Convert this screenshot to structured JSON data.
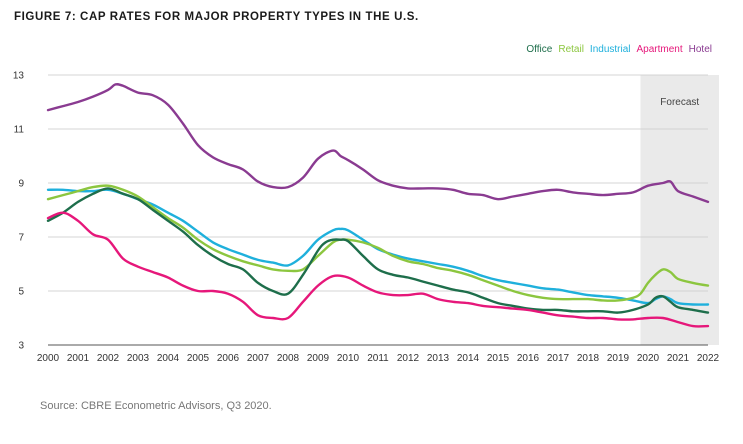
{
  "figure_title": "FIGURE 7: CAP RATES FOR MAJOR PROPERTY TYPES IN THE U.S.",
  "source": "Source: CBRE Econometric Advisors, Q3 2020.",
  "forecast_label": "Forecast",
  "chart_data": {
    "type": "line",
    "title": "FIGURE 7: CAP RATES FOR MAJOR PROPERTY TYPES IN THE U.S.",
    "xlabel": "",
    "ylabel": "",
    "xlim": [
      2000,
      2022
    ],
    "ylim": [
      3,
      13
    ],
    "yticks": [
      3,
      5,
      7,
      9,
      11,
      13
    ],
    "xticks": [
      2000,
      2001,
      2002,
      2003,
      2004,
      2005,
      2006,
      2007,
      2008,
      2009,
      2010,
      2011,
      2012,
      2013,
      2014,
      2015,
      2016,
      2017,
      2018,
      2019,
      2020,
      2021,
      2022
    ],
    "grid": "horizontal",
    "legend_position": "top-right",
    "forecast_range": [
      2019.75,
      2022.4
    ],
    "series": [
      {
        "name": "Office",
        "color": "#1e6e4b",
        "x": [
          2000,
          2000.5,
          2001,
          2001.5,
          2002,
          2002.5,
          2003,
          2003.5,
          2004,
          2004.5,
          2005,
          2005.5,
          2006,
          2006.5,
          2007,
          2007.5,
          2008,
          2008.5,
          2009,
          2009.25,
          2009.5,
          2009.75,
          2010,
          2010.5,
          2011,
          2011.5,
          2012,
          2012.5,
          2013,
          2013.5,
          2014,
          2014.5,
          2015,
          2015.5,
          2016,
          2016.5,
          2017,
          2017.5,
          2018,
          2018.5,
          2019,
          2019.5,
          2020,
          2020.25,
          2020.5,
          2020.75,
          2021,
          2021.5,
          2022
        ],
        "y": [
          7.6,
          7.9,
          8.3,
          8.6,
          8.8,
          8.6,
          8.4,
          8.0,
          7.6,
          7.2,
          6.7,
          6.3,
          6.0,
          5.8,
          5.3,
          5.0,
          4.9,
          5.6,
          6.5,
          6.8,
          6.9,
          6.9,
          6.85,
          6.3,
          5.8,
          5.6,
          5.5,
          5.35,
          5.2,
          5.05,
          4.95,
          4.75,
          4.55,
          4.45,
          4.35,
          4.3,
          4.3,
          4.25,
          4.25,
          4.25,
          4.2,
          4.3,
          4.5,
          4.75,
          4.8,
          4.6,
          4.4,
          4.3,
          4.2
        ]
      },
      {
        "name": "Retail",
        "color": "#8cc63f",
        "x": [
          2000,
          2000.5,
          2001,
          2001.5,
          2002,
          2002.5,
          2003,
          2003.5,
          2004,
          2004.5,
          2005,
          2005.5,
          2006,
          2006.5,
          2007,
          2007.5,
          2008,
          2008.5,
          2009,
          2009.5,
          2009.75,
          2010,
          2010.5,
          2011,
          2011.5,
          2012,
          2012.5,
          2013,
          2013.5,
          2014,
          2014.5,
          2015,
          2015.5,
          2016,
          2016.5,
          2017,
          2017.5,
          2018,
          2018.5,
          2019,
          2019.5,
          2019.75,
          2020,
          2020.25,
          2020.5,
          2020.75,
          2021,
          2021.5,
          2022
        ],
        "y": [
          8.4,
          8.55,
          8.7,
          8.85,
          8.9,
          8.75,
          8.5,
          8.1,
          7.7,
          7.35,
          6.9,
          6.55,
          6.3,
          6.1,
          5.95,
          5.8,
          5.75,
          5.8,
          6.3,
          6.8,
          6.9,
          6.9,
          6.8,
          6.6,
          6.3,
          6.1,
          6.0,
          5.85,
          5.75,
          5.6,
          5.4,
          5.2,
          5.0,
          4.85,
          4.75,
          4.7,
          4.7,
          4.7,
          4.65,
          4.65,
          4.75,
          4.9,
          5.3,
          5.6,
          5.8,
          5.7,
          5.45,
          5.3,
          5.2
        ]
      },
      {
        "name": "Industrial",
        "color": "#1fb0dc",
        "x": [
          2000,
          2000.5,
          2001,
          2001.5,
          2002,
          2002.5,
          2003,
          2003.5,
          2004,
          2004.5,
          2005,
          2005.5,
          2006,
          2006.5,
          2007,
          2007.5,
          2008,
          2008.5,
          2009,
          2009.5,
          2009.75,
          2010,
          2010.5,
          2011,
          2011.5,
          2012,
          2012.5,
          2013,
          2013.5,
          2014,
          2014.5,
          2015,
          2015.5,
          2016,
          2016.5,
          2017,
          2017.5,
          2018,
          2018.5,
          2019,
          2019.5,
          2020,
          2020.25,
          2020.5,
          2020.75,
          2021,
          2021.5,
          2022
        ],
        "y": [
          8.75,
          8.75,
          8.7,
          8.7,
          8.75,
          8.6,
          8.4,
          8.2,
          7.9,
          7.6,
          7.2,
          6.8,
          6.55,
          6.35,
          6.15,
          6.05,
          5.95,
          6.3,
          6.9,
          7.25,
          7.3,
          7.25,
          6.9,
          6.55,
          6.35,
          6.2,
          6.1,
          6.0,
          5.9,
          5.75,
          5.55,
          5.4,
          5.3,
          5.2,
          5.1,
          5.05,
          4.95,
          4.85,
          4.8,
          4.75,
          4.65,
          4.55,
          4.7,
          4.8,
          4.7,
          4.55,
          4.5,
          4.5
        ]
      },
      {
        "name": "Apartment",
        "color": "#e6177a",
        "x": [
          2000,
          2000.5,
          2001,
          2001.5,
          2002,
          2002.5,
          2003,
          2003.5,
          2004,
          2004.5,
          2005,
          2005.5,
          2006,
          2006.5,
          2007,
          2007.5,
          2008,
          2008.5,
          2009,
          2009.5,
          2010,
          2010.5,
          2011,
          2011.5,
          2012,
          2012.5,
          2013,
          2013.5,
          2014,
          2014.5,
          2015,
          2015.5,
          2016,
          2016.5,
          2017,
          2017.5,
          2018,
          2018.5,
          2019,
          2019.5,
          2020,
          2020.5,
          2021,
          2021.5,
          2022
        ],
        "y": [
          7.7,
          7.9,
          7.6,
          7.1,
          6.9,
          6.2,
          5.9,
          5.7,
          5.5,
          5.2,
          5.0,
          5.0,
          4.9,
          4.6,
          4.1,
          4.0,
          4.0,
          4.6,
          5.2,
          5.55,
          5.5,
          5.2,
          4.95,
          4.85,
          4.85,
          4.9,
          4.7,
          4.6,
          4.55,
          4.45,
          4.4,
          4.35,
          4.3,
          4.2,
          4.1,
          4.05,
          4.0,
          4.0,
          3.95,
          3.95,
          4.0,
          4.0,
          3.85,
          3.7,
          3.7
        ]
      },
      {
        "name": "Hotel",
        "color": "#8a3b91",
        "x": [
          2000,
          2000.5,
          2001,
          2001.5,
          2002,
          2002.25,
          2002.5,
          2003,
          2003.5,
          2004,
          2004.5,
          2005,
          2005.5,
          2006,
          2006.5,
          2007,
          2007.5,
          2008,
          2008.5,
          2009,
          2009.5,
          2009.75,
          2010,
          2010.5,
          2011,
          2011.5,
          2012,
          2012.5,
          2013,
          2013.5,
          2014,
          2014.5,
          2015,
          2015.5,
          2016,
          2016.5,
          2017,
          2017.5,
          2018,
          2018.5,
          2019,
          2019.5,
          2020,
          2020.5,
          2020.75,
          2021,
          2021.5,
          2022
        ],
        "y": [
          11.7,
          11.85,
          12.0,
          12.2,
          12.45,
          12.65,
          12.6,
          12.35,
          12.25,
          11.9,
          11.2,
          10.4,
          9.95,
          9.7,
          9.5,
          9.05,
          8.85,
          8.85,
          9.2,
          9.9,
          10.2,
          10.0,
          9.85,
          9.5,
          9.1,
          8.9,
          8.8,
          8.8,
          8.8,
          8.75,
          8.6,
          8.55,
          8.4,
          8.5,
          8.6,
          8.7,
          8.75,
          8.65,
          8.6,
          8.55,
          8.6,
          8.65,
          8.9,
          9.0,
          9.05,
          8.7,
          8.5,
          8.3
        ]
      }
    ]
  }
}
